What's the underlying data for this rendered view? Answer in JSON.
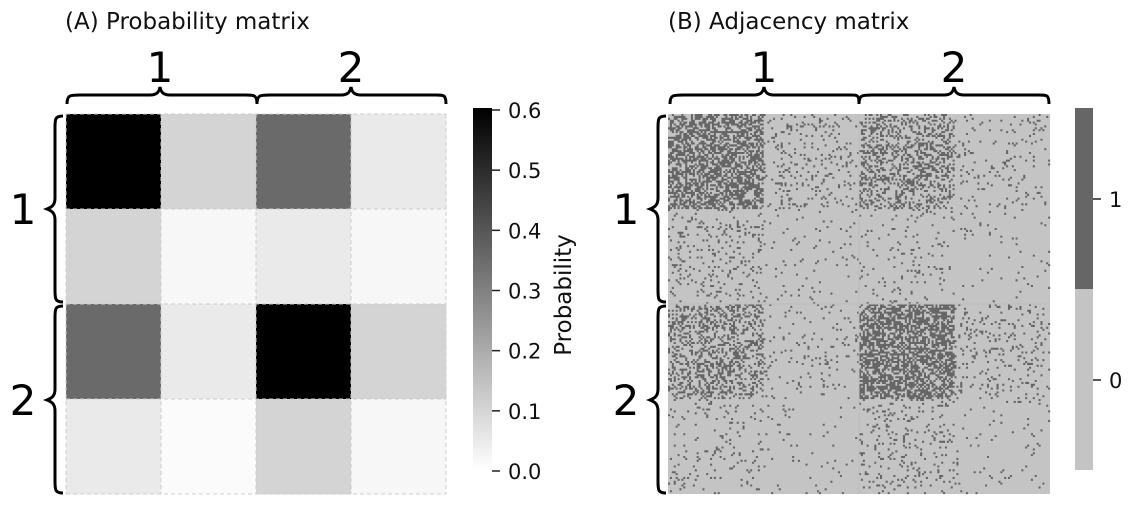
{
  "chart_data": [
    {
      "type": "heatmap",
      "title": "(A) Probability matrix",
      "block_labels": [
        "1",
        "2"
      ],
      "rows": 4,
      "cols": 4,
      "values": [
        [
          0.6,
          0.1,
          0.35,
          0.05
        ],
        [
          0.1,
          0.02,
          0.05,
          0.02
        ],
        [
          0.35,
          0.05,
          0.6,
          0.1
        ],
        [
          0.05,
          0.01,
          0.1,
          0.02
        ]
      ],
      "colormap": [
        "#ffffff",
        "#000000"
      ],
      "colorbar": {
        "label": "Probability",
        "range": [
          0.0,
          0.6
        ],
        "ticks": [
          "0.0",
          "0.1",
          "0.2",
          "0.3",
          "0.4",
          "0.5",
          "0.6"
        ]
      },
      "gridlines": "dashed, light gray"
    },
    {
      "type": "heatmap",
      "title": "(B) Adjacency matrix",
      "block_labels": [
        "1",
        "2"
      ],
      "n_nodes": 200,
      "sub_block_size": 50,
      "edge_probabilities": [
        [
          0.6,
          0.1,
          0.35,
          0.05
        ],
        [
          0.1,
          0.02,
          0.05,
          0.02
        ],
        [
          0.35,
          0.05,
          0.6,
          0.1
        ],
        [
          0.05,
          0.01,
          0.1,
          0.02
        ]
      ],
      "colors": {
        "0": "#c4c4c4",
        "1": "#666666"
      },
      "colorbar": {
        "ticks": [
          "0",
          "1"
        ]
      }
    }
  ]
}
